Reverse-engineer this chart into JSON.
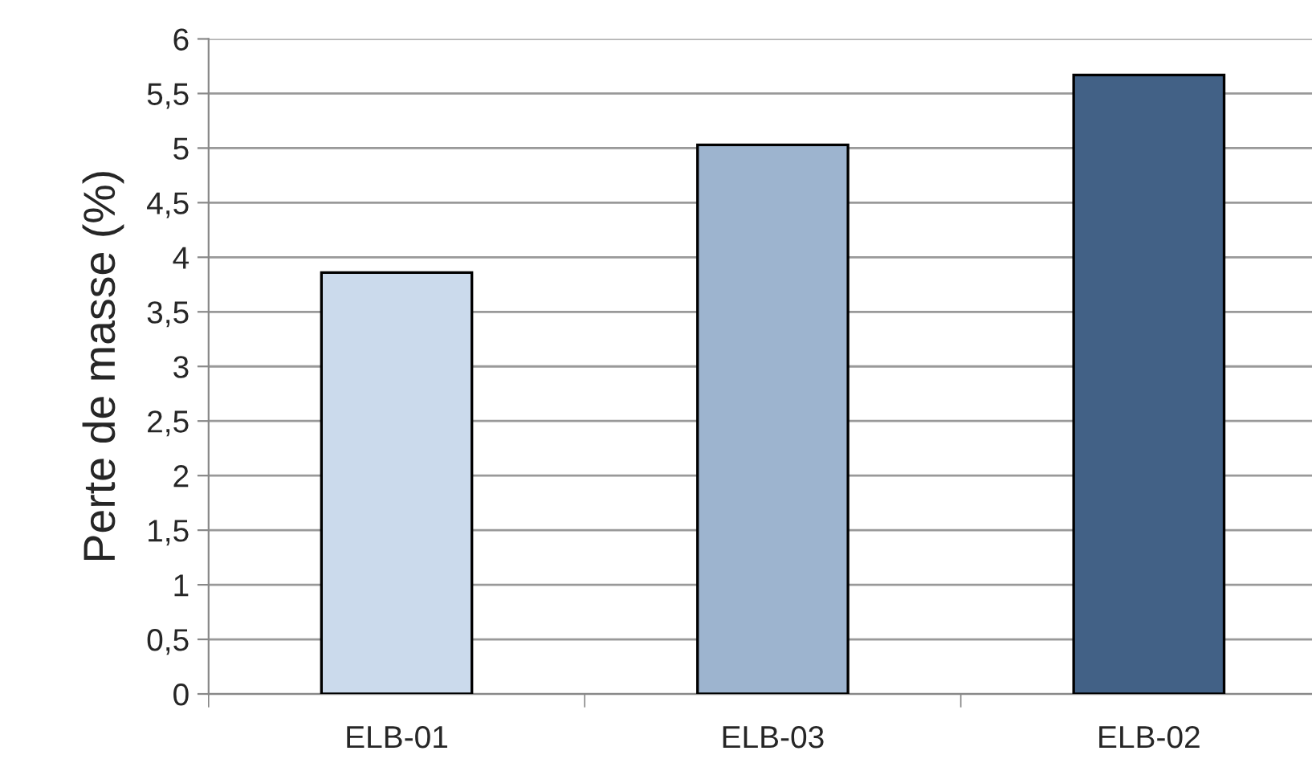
{
  "chart_data": {
    "type": "bar",
    "ylabel": "Perte de masse (%)",
    "categories": [
      "ELB-01",
      "ELB-03",
      "ELB-02"
    ],
    "values": [
      3.86,
      5.03,
      5.67
    ],
    "colors": [
      "#c6d9f1",
      "#95b3d7",
      "#366092"
    ],
    "ylim": [
      0,
      6
    ],
    "yticks": [
      0,
      {
        "value": 0.5,
        "label": "0,5"
      },
      1,
      {
        "value": 1.5,
        "label": "1,5"
      },
      2,
      {
        "value": 2.5,
        "label": "2,5"
      },
      3,
      {
        "value": 3.5,
        "label": "3,5"
      },
      4,
      {
        "value": 4.5,
        "label": "4,5"
      },
      5,
      {
        "value": 5.5,
        "label": "5,5"
      },
      6
    ],
    "grid": "y",
    "legend": false
  }
}
